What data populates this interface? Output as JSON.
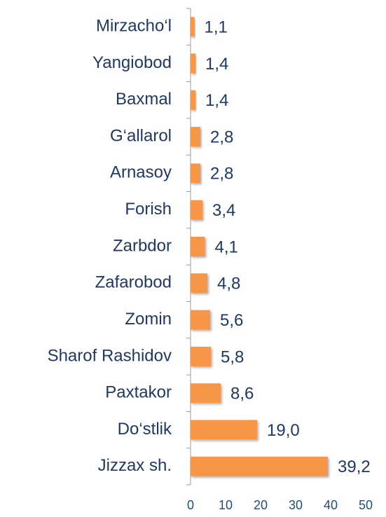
{
  "chart_data": {
    "type": "hbar",
    "categories": [
      "Mirzacho‘l",
      "Yangiobod",
      "Baxmal",
      "G‘allarol",
      "Arnasoy",
      "Forish",
      "Zarbdor",
      "Zafarobod",
      "Zomin",
      "Sharof Rashidov",
      "Paxtakor",
      "Do‘stlik",
      "Jizzax sh."
    ],
    "values": [
      1.1,
      1.4,
      1.4,
      2.8,
      2.8,
      3.4,
      4.1,
      4.8,
      5.6,
      5.8,
      8.6,
      19.0,
      39.2
    ],
    "value_labels": [
      "1,1",
      "1,4",
      "1,4",
      "2,8",
      "2,8",
      "3,4",
      "4,1",
      "4,8",
      "5,6",
      "5,8",
      "8,6",
      "19,0",
      "39,2"
    ],
    "color": "#f79646",
    "xlim": [
      0,
      50
    ],
    "xticks": [
      0,
      10,
      20,
      30,
      40,
      50
    ]
  }
}
